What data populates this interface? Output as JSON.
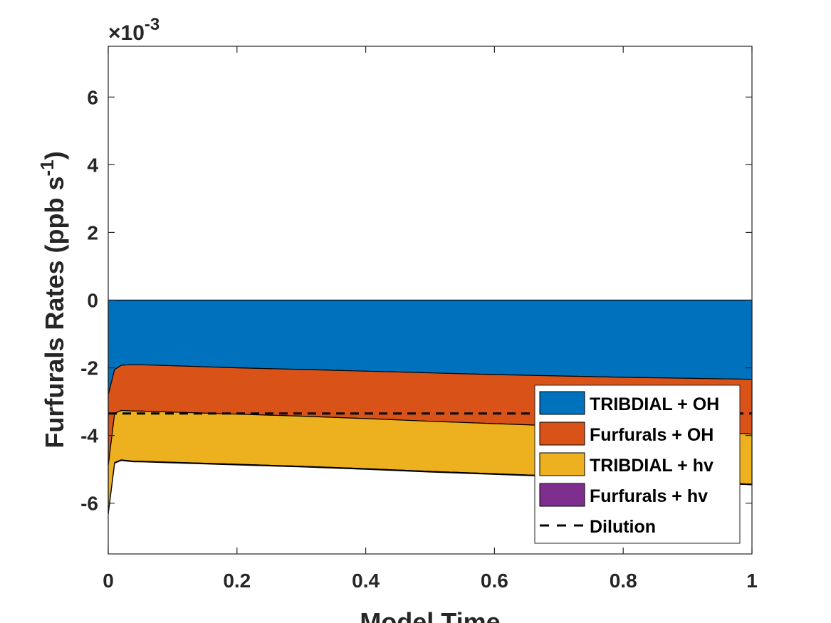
{
  "chart_data": {
    "type": "area",
    "title": "",
    "xlabel": "Model Time",
    "ylabel": "Furfurals Rates (ppb s",
    "ylabel_exponent": "-1",
    "ylabel_suffix": ")",
    "y_multiplier_prefix": "×10",
    "y_multiplier_exponent": "-3",
    "xlim": [
      0,
      1
    ],
    "ylim": [
      -7.5,
      7.5
    ],
    "xticks": [
      0,
      0.2,
      0.4,
      0.6,
      0.8,
      1
    ],
    "xtick_labels": [
      "0",
      "0.2",
      "0.4",
      "0.6",
      "0.8",
      "1"
    ],
    "yticks": [
      -6,
      -4,
      -2,
      0,
      2,
      4,
      6
    ],
    "ytick_labels": [
      "-6",
      "-4",
      "-2",
      "0",
      "2",
      "4",
      "6"
    ],
    "y_scale_note": "values in units of 1e-3 ppb s^-1",
    "grid": false,
    "legend_position": "bottom-right",
    "x": [
      0,
      0.01,
      0.02,
      0.03,
      0.04,
      0.05,
      0.1,
      0.2,
      0.3,
      0.4,
      0.5,
      0.6,
      0.7,
      0.8,
      0.9,
      1.0
    ],
    "series": [
      {
        "name": "TRIBDIAL + OH",
        "color": "#0072BD",
        "values": [
          -2.8,
          -2.05,
          -1.93,
          -1.91,
          -1.91,
          -1.91,
          -1.94,
          -2.0,
          -2.05,
          -2.1,
          -2.15,
          -2.2,
          -2.24,
          -2.28,
          -2.31,
          -2.34
        ]
      },
      {
        "name": "Furfurals + OH",
        "color": "#D95319",
        "values": [
          -2.1,
          -1.3,
          -1.33,
          -1.36,
          -1.37,
          -1.37,
          -1.37,
          -1.37,
          -1.38,
          -1.4,
          -1.43,
          -1.45,
          -1.48,
          -1.52,
          -1.56,
          -1.62
        ]
      },
      {
        "name": "TRIBDIAL + hv",
        "color": "#EDB120",
        "values": [
          -1.4,
          -1.45,
          -1.46,
          -1.47,
          -1.48,
          -1.48,
          -1.48,
          -1.48,
          -1.48,
          -1.48,
          -1.48,
          -1.48,
          -1.48,
          -1.48,
          -1.48,
          -1.48
        ]
      },
      {
        "name": "Furfurals + hv",
        "color": "#7E2F8E",
        "values": [
          -0.02,
          -0.02,
          -0.02,
          -0.02,
          -0.02,
          -0.02,
          -0.02,
          -0.02,
          -0.02,
          -0.02,
          -0.02,
          -0.02,
          -0.02,
          -0.02,
          -0.02,
          -0.02
        ]
      }
    ],
    "lines": [
      {
        "name": "Dilution",
        "color": "#000000",
        "style": "dashed",
        "value": -3.35
      }
    ]
  }
}
